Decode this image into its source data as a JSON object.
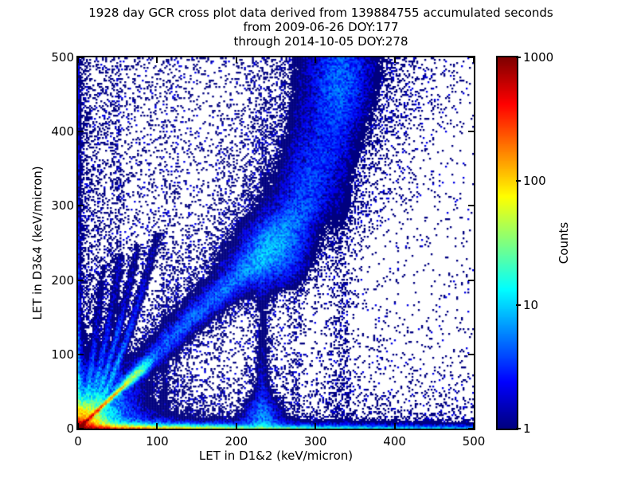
{
  "figure": {
    "title_lines": [
      "1928 day GCR cross plot data derived from 139884755 accumulated seconds",
      "from 2009-06-26 DOY:177",
      "through 2014-10-05 DOY:278"
    ],
    "background_color": "#ffffff"
  },
  "chart_data": {
    "type": "heatmap",
    "subtype": "2d-histogram-density",
    "title": "1928 day GCR cross plot data derived from 139884755 accumulated seconds from 2009-06-26 DOY:177 through 2014-10-05 DOY:278",
    "xlabel": "LET in D1&2 (keV/micron)",
    "ylabel": "LET in D3&4 (keV/micron)",
    "xlim": [
      0,
      500
    ],
    "ylim": [
      0,
      500
    ],
    "x_ticks": [
      0,
      100,
      200,
      300,
      400,
      500
    ],
    "y_ticks": [
      0,
      100,
      200,
      300,
      400,
      500
    ],
    "grid": false,
    "colorbar": {
      "label": "Counts",
      "scale": "log",
      "min": 1,
      "max": 1000,
      "ticks": [
        1,
        10,
        100,
        1000
      ],
      "colormap": "jet",
      "position": "right"
    },
    "distribution_features": [
      "extremely hot red/dark-red pileup spot at the origin (counts ~1000)",
      "narrow red unity line LET(D1&2)=LET(D3&4) from origin to ~(58,58) ending in a yellow-green knot near (68,68)",
      "broad blue GCR diagonal band from origin curving up to ~(332,500) with a denser knot near (247,233)",
      "several cyan streaks radiating steeply from the origin up to y~250",
      "faint vertical instrument streaks near x=50,110,124,140,181,233,276,332",
      "hot orange/yellow pileup band along the bottom edge fading to blue by x~400",
      "dense blue column along the left edge, cyan near the bottom",
      "sparse dark-blue single-count speckle everywhere, density decreasing with x"
    ],
    "render": {
      "seed": 1928,
      "bins_x": 248,
      "bins_y": 233
    },
    "density_model": {
      "origin_glow": [
        {
          "amp": 1600,
          "scale": 7.5
        },
        {
          "amp": 35,
          "scale": 24
        },
        {
          "amp": 12,
          "scale": 28
        }
      ],
      "proton_line": {
        "slope": 1,
        "y_max": 58,
        "amp0": 1100,
        "decay": 20,
        "amp_min": 40,
        "sigma": 1.7
      },
      "blobs": [
        {
          "x": 68,
          "y": 68,
          "sx": 12,
          "sy": 2.8,
          "amp": 40,
          "rot45": true
        },
        {
          "x": 82,
          "y": 82,
          "sx": 10,
          "sy": 4,
          "amp": 10,
          "rot45": true
        },
        {
          "x": 247,
          "y": 233,
          "sx": 26,
          "sy": 26,
          "amp": 3.5
        },
        {
          "x": 332,
          "y": 468,
          "sx": 20,
          "sy": 36,
          "amp": 2.0
        },
        {
          "x": 233,
          "y": 12,
          "sx": 15,
          "sy": 18,
          "amp": 4
        }
      ],
      "streaks": [
        {
          "x100": 19,
          "exp": 0.65,
          "ymax": 220,
          "amp": 6,
          "ldecay": 95
        },
        {
          "x100": 31,
          "exp": 0.65,
          "ymax": 235,
          "amp": 8,
          "ldecay": 95
        },
        {
          "x100": 42,
          "exp": 0.65,
          "ymax": 250,
          "amp": 10,
          "ldecay": 95
        },
        {
          "x100": 54,
          "exp": 0.65,
          "ymax": 265,
          "amp": 12,
          "ldecay": 95
        }
      ],
      "band": {
        "y_min": 8,
        "centerline": [
          [
            0,
            0
          ],
          [
            82,
            80
          ],
          [
            155,
            150
          ],
          [
            205,
            205
          ],
          [
            245,
            245
          ],
          [
            305,
            285
          ],
          [
            370,
            305
          ],
          [
            440,
            322
          ],
          [
            500,
            332
          ]
        ],
        "sigma_by_y": [
          [
            0,
            5
          ],
          [
            80,
            8
          ],
          [
            160,
            12
          ],
          [
            240,
            17
          ],
          [
            320,
            21
          ],
          [
            420,
            25
          ],
          [
            500,
            28
          ]
        ],
        "amp_by_y": [
          [
            0,
            2.2
          ],
          [
            90,
            2.8
          ],
          [
            160,
            3.2
          ],
          [
            210,
            3.8
          ],
          [
            260,
            3.8
          ],
          [
            320,
            2.6
          ],
          [
            400,
            2.0
          ],
          [
            470,
            1.8
          ],
          [
            500,
            1.7
          ]
        ],
        "spray": {
          "width_mult": 2.6,
          "amp_mult": 0.33
        }
      },
      "vertical_streaks": [
        {
          "x": 50,
          "sigma": 3,
          "amp": 0.5,
          "ydecay": 700
        },
        {
          "x": 110,
          "sigma": 4,
          "amp": 0.5,
          "ydecay": 350
        },
        {
          "x": 124,
          "sigma": 3,
          "amp": 0.35,
          "ydecay": 400
        },
        {
          "x": 140,
          "sigma": 3,
          "amp": 0.25,
          "ydecay": 400
        },
        {
          "x": 181,
          "sigma": 3,
          "amp": 0.22,
          "ydecay": 600
        },
        {
          "x": 233,
          "sigma": 5,
          "amp": 2.0,
          "ydecay": 110
        },
        {
          "x": 233,
          "sigma": 13,
          "amp": 0.6,
          "ydecay": 220
        },
        {
          "x": 276,
          "sigma": 6,
          "amp": 0.25,
          "ydecay": 3000
        },
        {
          "x": 332,
          "sigma": 9,
          "amp": 0.4,
          "ydecay": 3000
        }
      ],
      "left_column": {
        "amps": [
          [
            90,
            13
          ],
          [
            9,
            120
          ]
        ],
        "base": 2.2,
        "xscale": 2.5
      },
      "bottom_band": {
        "amps": [
          [
            1200,
            30
          ],
          [
            350,
            95
          ],
          [
            25,
            260
          ]
        ],
        "base": 3,
        "yscale": 2.0,
        "pedestal": {
          "amps": [
            [
              6,
              250
            ]
          ],
          "base": 1.5,
          "yscale": 7
        }
      },
      "background": {
        "base": 0.02,
        "x_terms": [
          [
            0.22,
            120
          ],
          [
            0.05,
            350
          ]
        ],
        "y_mod_base": 0.55,
        "y_mod_amp": 0.75,
        "y_mod_scale": 280,
        "extra": [
          {
            "amp": 0.5,
            "xs": 350,
            "ys": 25
          },
          {
            "amp": 0.12,
            "xs": 99999,
            "ys": 60
          },
          {
            "amp": 0.25,
            "xs": 30,
            "ys": 99999
          }
        ],
        "cap": 0.9,
        "multi_p": 0.12
      }
    }
  }
}
